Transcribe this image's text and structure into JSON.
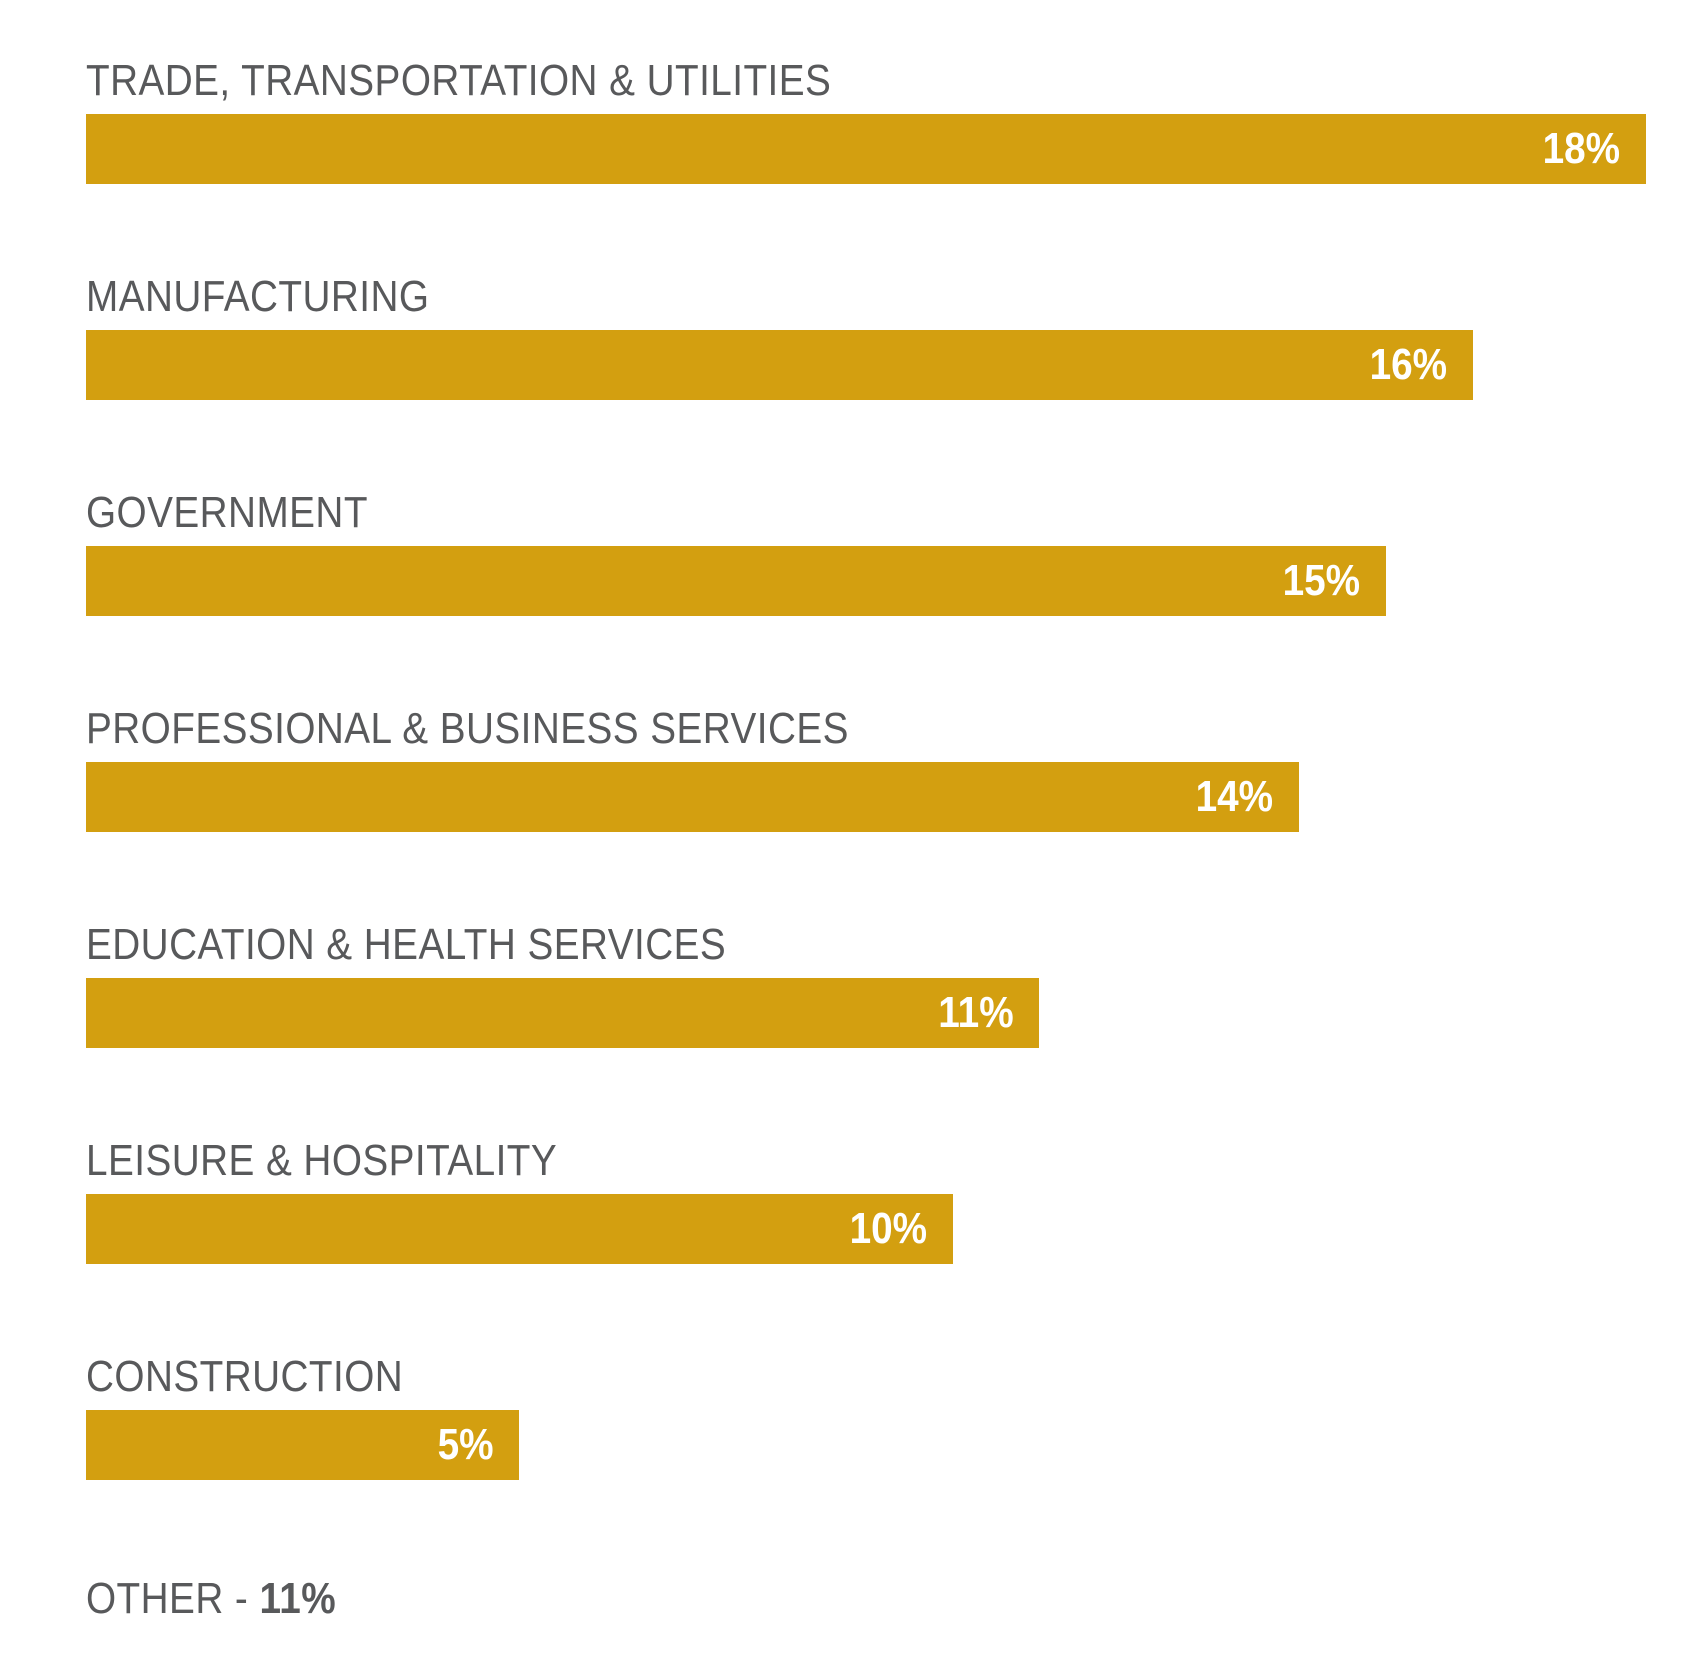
{
  "chart_data": {
    "type": "bar",
    "orientation": "horizontal",
    "categories": [
      "TRADE, TRANSPORTATION & UTILITIES",
      "MANUFACTURING",
      "GOVERNMENT",
      "PROFESSIONAL & BUSINESS SERVICES",
      "EDUCATION & HEALTH SERVICES",
      "LEISURE & HOSPITALITY",
      "CONSTRUCTION"
    ],
    "values": [
      18,
      16,
      15,
      14,
      11,
      10,
      5
    ],
    "value_labels": [
      "18%",
      "16%",
      "15%",
      "14%",
      "11%",
      "10%",
      "5%"
    ],
    "unit": "%",
    "xlim": [
      0,
      18
    ],
    "grid": false,
    "bar_color": "#d39f10",
    "label_color": "#58595b",
    "value_label_color": "#ffffff",
    "other": {
      "label": "OTHER - ",
      "value": 11,
      "value_label": "11%"
    }
  }
}
